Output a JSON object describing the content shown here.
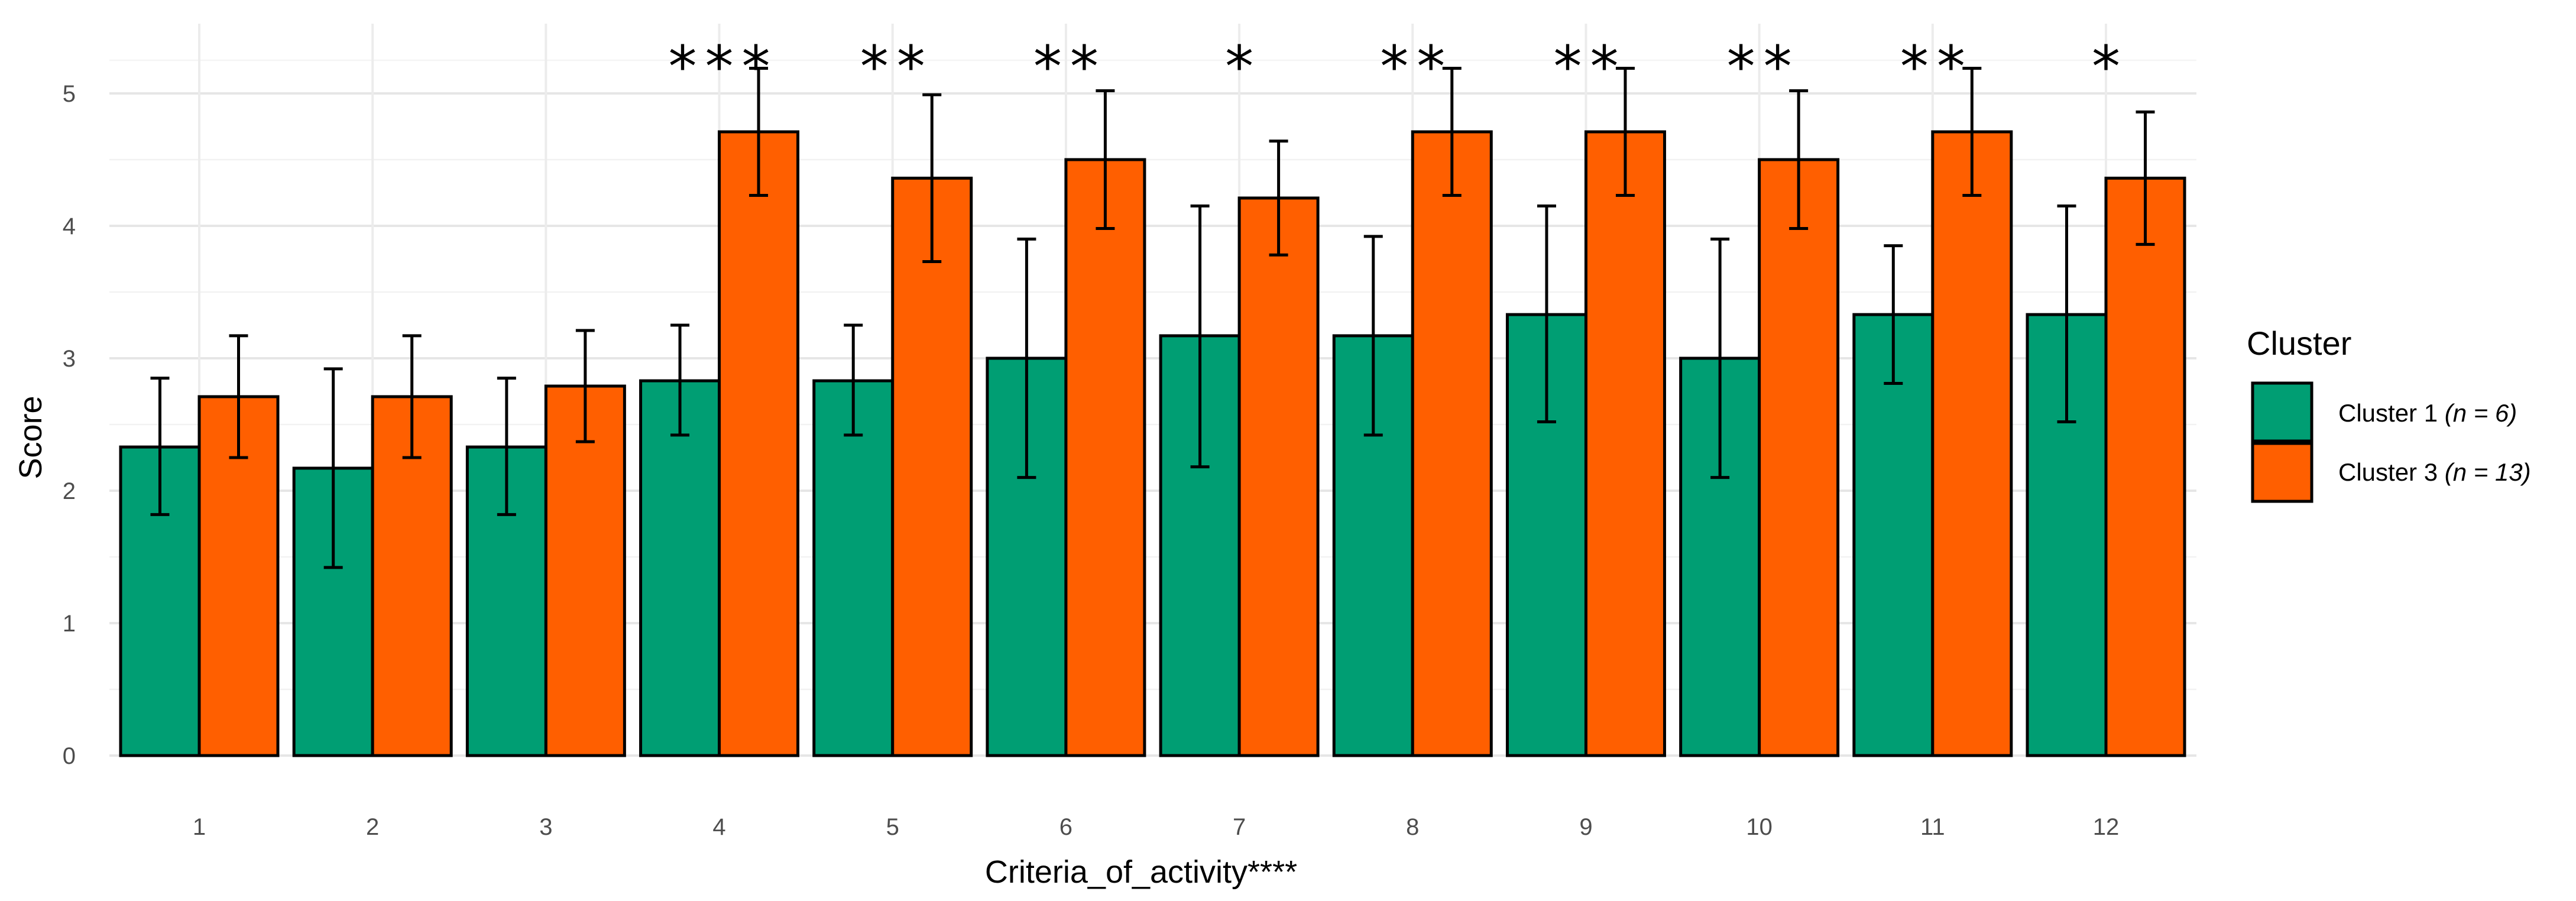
{
  "chart_data": {
    "type": "bar",
    "title": "",
    "xlabel": "Criteria_of_activity****",
    "ylabel": "Score",
    "ylim": [
      0,
      5.3
    ],
    "yticks": [
      0,
      1,
      2,
      3,
      4,
      5
    ],
    "grid": true,
    "categories": [
      "1",
      "2",
      "3",
      "4",
      "5",
      "6",
      "7",
      "8",
      "9",
      "10",
      "11",
      "12"
    ],
    "series": [
      {
        "name": "Cluster 1",
        "n_label": "(n = 6)",
        "color": "#009E73",
        "values": [
          2.33,
          2.17,
          2.33,
          2.83,
          2.83,
          3.0,
          3.17,
          3.17,
          3.33,
          3.0,
          3.33,
          3.33
        ],
        "error_lower": [
          1.82,
          1.42,
          1.82,
          2.42,
          2.42,
          2.1,
          2.18,
          2.42,
          2.52,
          2.1,
          2.81,
          2.52
        ],
        "error_upper": [
          2.85,
          2.92,
          2.85,
          3.25,
          3.25,
          3.9,
          4.15,
          3.92,
          4.15,
          3.9,
          3.85,
          4.15
        ]
      },
      {
        "name": "Cluster 3",
        "n_label": "(n = 13)",
        "color": "#FF5F00",
        "values": [
          2.71,
          2.71,
          2.79,
          4.71,
          4.36,
          4.5,
          4.21,
          4.71,
          4.71,
          4.5,
          4.71,
          4.36
        ],
        "error_lower": [
          2.25,
          2.25,
          2.37,
          4.23,
          3.73,
          3.98,
          3.78,
          4.23,
          4.23,
          3.98,
          4.23,
          3.86
        ],
        "error_upper": [
          3.17,
          3.17,
          3.21,
          5.19,
          4.99,
          5.02,
          4.64,
          5.19,
          5.19,
          5.02,
          5.19,
          4.86
        ]
      }
    ],
    "significance": [
      "",
      "",
      "",
      "***",
      "**",
      "**",
      "*",
      "**",
      "**",
      "**",
      "**",
      "*"
    ],
    "legend": {
      "title": "Cluster",
      "position": "right"
    }
  }
}
